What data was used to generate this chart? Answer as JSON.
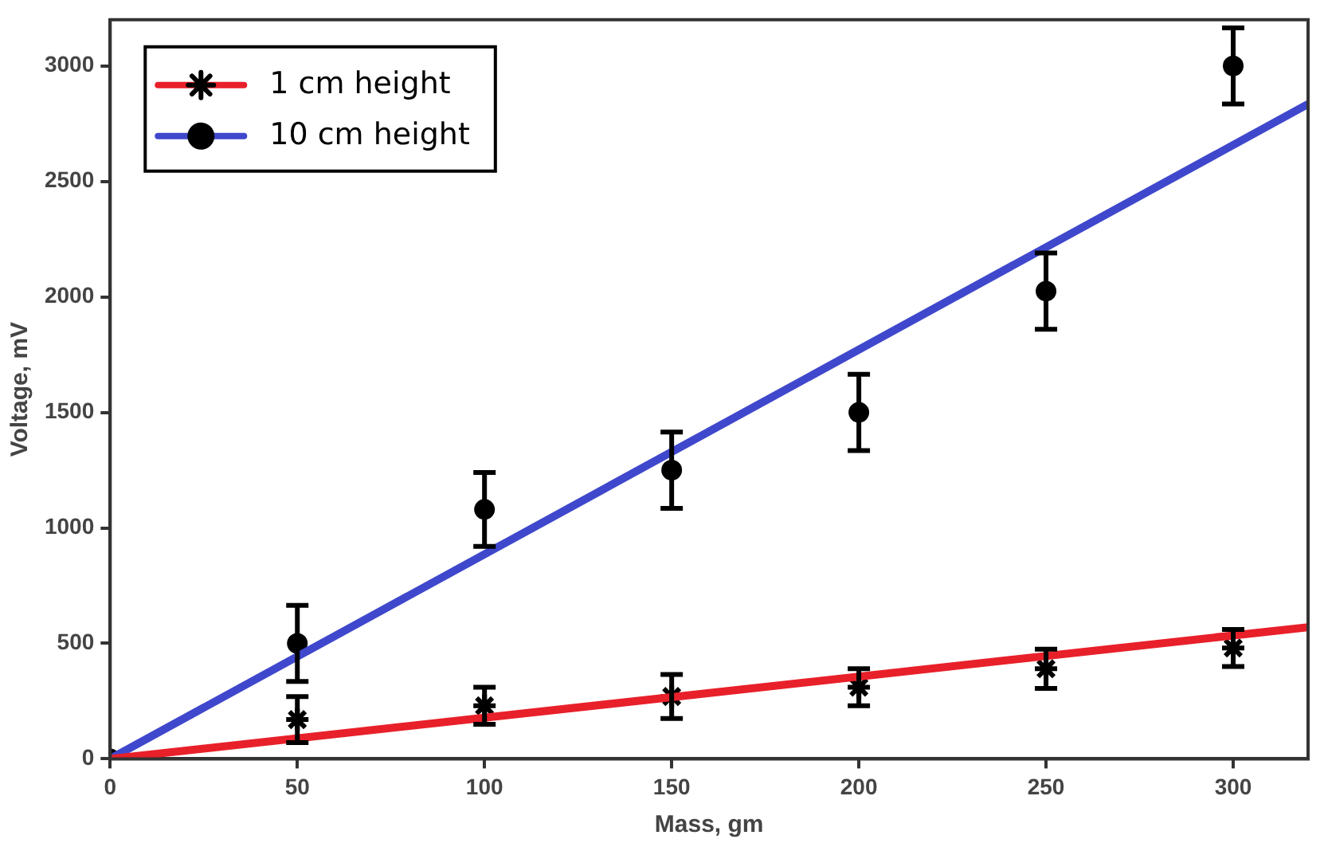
{
  "chart_data": {
    "type": "scatter",
    "xlabel": "Mass, gm",
    "ylabel": "Voltage, mV",
    "xlim": [
      0,
      320
    ],
    "ylim": [
      0,
      3200
    ],
    "xticks": [
      0,
      50,
      100,
      150,
      200,
      250,
      300
    ],
    "yticks": [
      0,
      500,
      1000,
      1500,
      2000,
      2500,
      3000
    ],
    "grid": false,
    "legend": "top left",
    "series": [
      {
        "name": "1 cm height",
        "type": "line",
        "color": "#e8202a",
        "x": [
          0,
          320
        ],
        "values": [
          0,
          570
        ],
        "marker": "none",
        "line_style": "solid"
      },
      {
        "type": "scatter",
        "color": "#000000",
        "marker": "cross",
        "x": [
          50,
          100,
          150,
          200,
          250,
          300
        ],
        "values": [
          170,
          230,
          270,
          310,
          390,
          480
        ],
        "errors": [
          100,
          80,
          95,
          80,
          85,
          80
        ]
      },
      {
        "name": "10 cm height",
        "type": "line",
        "color": "#3f48cc",
        "x": [
          0,
          320
        ],
        "values": [
          0,
          2835
        ],
        "marker": "none",
        "line_style": "solid"
      },
      {
        "type": "scatter",
        "color": "#000000",
        "marker": "circle",
        "x": [
          0,
          50,
          100,
          150,
          200,
          250,
          300
        ],
        "values": [
          0,
          500,
          1080,
          1250,
          1500,
          2025,
          3000
        ],
        "errors": [
          null,
          165,
          160,
          165,
          165,
          165,
          165
        ]
      }
    ]
  }
}
